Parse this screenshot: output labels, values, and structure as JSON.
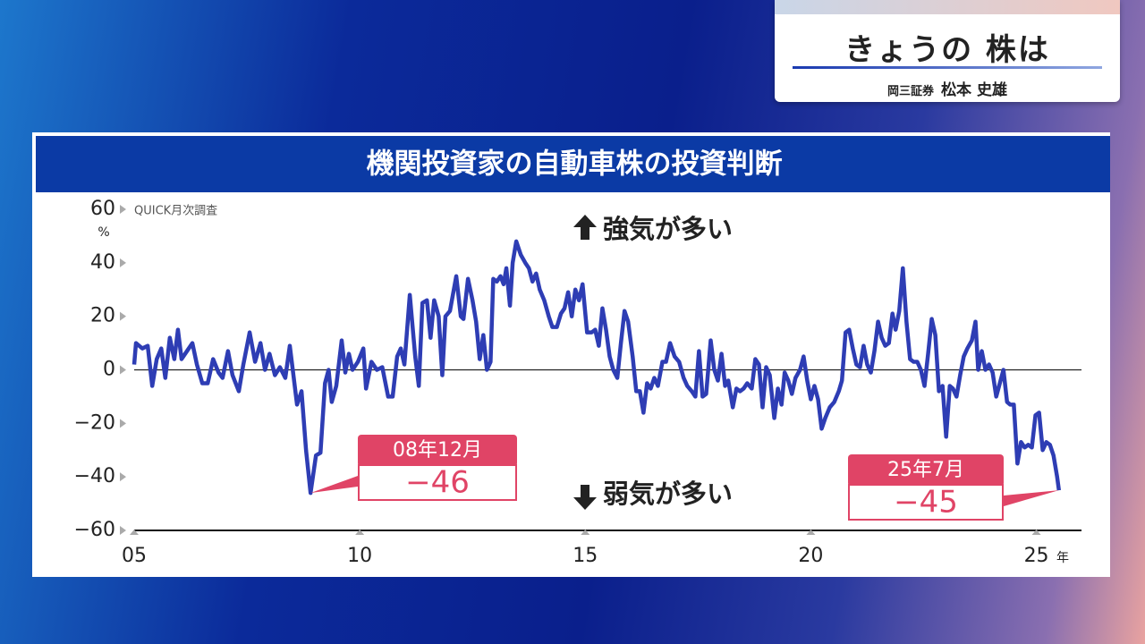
{
  "header": {
    "title": "きょうの 株は",
    "company": "岡三証券",
    "name": "松本 史雄"
  },
  "chart_data": {
    "type": "line",
    "title": "機関投資家の自動車株の投資判断",
    "note": "QUICK月次調査",
    "y_unit": "%",
    "x_unit": "年",
    "color": "#2e3db4",
    "bull_label": "強気が多い",
    "bear_label": "弱気が多い",
    "x": [
      5.0,
      5.04,
      5.18,
      5.3,
      5.4,
      5.5,
      5.6,
      5.69,
      5.79,
      5.89,
      5.97,
      6.05,
      6.17,
      6.29,
      6.39,
      6.51,
      6.63,
      6.75,
      6.87,
      6.96,
      7.08,
      7.18,
      7.32,
      7.42,
      7.56,
      7.68,
      7.8,
      7.9,
      8.0,
      8.12,
      8.23,
      8.35,
      8.45,
      8.61,
      8.71,
      8.81,
      8.91,
      9.03,
      9.13,
      9.23,
      9.31,
      9.38,
      9.48,
      9.6,
      9.68,
      9.76,
      9.84,
      9.96,
      10.08,
      10.14,
      10.26,
      10.38,
      10.5,
      10.63,
      10.73,
      10.83,
      10.91,
      10.99,
      11.11,
      11.23,
      11.31,
      11.39,
      11.49,
      11.57,
      11.65,
      11.75,
      11.83,
      11.9,
      12.0,
      12.14,
      12.24,
      12.3,
      12.4,
      12.5,
      12.58,
      12.66,
      12.74,
      12.82,
      12.9,
      12.96,
      13.04,
      13.12,
      13.19,
      13.25,
      13.33,
      13.39,
      13.47,
      13.57,
      13.67,
      13.75,
      13.83,
      13.91,
      13.99,
      14.09,
      14.19,
      14.27,
      14.37,
      14.46,
      14.54,
      14.62,
      14.7,
      14.78,
      14.86,
      14.94,
      15.04,
      15.14,
      15.22,
      15.3,
      15.38,
      15.46,
      15.54,
      15.62,
      15.71,
      15.79,
      15.87,
      15.95,
      16.05,
      16.13,
      16.21,
      16.29,
      16.37,
      16.45,
      16.53,
      16.61,
      16.71,
      16.79,
      16.88,
      16.98,
      17.08,
      17.18,
      17.26,
      17.36,
      17.44,
      17.52,
      17.6,
      17.68,
      17.78,
      17.86,
      17.94,
      18.02,
      18.1,
      18.17,
      18.27,
      18.35,
      18.43,
      18.51,
      18.59,
      18.69,
      18.77,
      18.85,
      18.93,
      19.01,
      19.09,
      19.19,
      19.27,
      19.35,
      19.42,
      19.5,
      19.58,
      19.66,
      19.76,
      19.84,
      19.92,
      20.0,
      20.08,
      20.16,
      20.24,
      20.32,
      20.42,
      20.52,
      20.62,
      20.69,
      20.77,
      20.85,
      20.93,
      21.01,
      21.09,
      21.17,
      21.25,
      21.33,
      21.41,
      21.49,
      21.57,
      21.65,
      21.73,
      21.81,
      21.88,
      21.96,
      22.04,
      22.12,
      22.2,
      22.28,
      22.36,
      22.44,
      22.52,
      22.6,
      22.68,
      22.76,
      22.84,
      22.92,
      23.0,
      23.08,
      23.15,
      23.23,
      23.31,
      23.39,
      23.47,
      23.57,
      23.65,
      23.71,
      23.79,
      23.87,
      23.95,
      24.03,
      24.11,
      24.19,
      24.27,
      24.35,
      24.42,
      24.5,
      24.58,
      24.66,
      24.74,
      24.82,
      24.9,
      24.98,
      25.06,
      25.14,
      25.22,
      25.3,
      25.38,
      25.46,
      25.5
    ],
    "values": [
      2,
      10,
      8,
      9,
      -6,
      4,
      8,
      -3,
      12,
      4,
      15,
      4,
      7,
      10,
      2,
      -5,
      -5,
      4,
      -1,
      -3,
      7,
      -2,
      -8,
      2,
      14,
      3,
      10,
      0,
      6,
      -2,
      1,
      -3,
      9,
      -13,
      -8,
      -30,
      -46,
      -32,
      -31,
      -5,
      0,
      -12,
      -6,
      11,
      -1,
      6,
      0,
      3,
      8,
      -7,
      3,
      0,
      1,
      -10,
      -10,
      5,
      8,
      2,
      28,
      5,
      -6,
      25,
      26,
      12,
      26,
      20,
      -2,
      20,
      22,
      35,
      20,
      19,
      34,
      26,
      18,
      4,
      13,
      0,
      3,
      34,
      33,
      35,
      32,
      38,
      24,
      40,
      48,
      43,
      40,
      38,
      33,
      36,
      30,
      26,
      20,
      16,
      16,
      21,
      23,
      29,
      20,
      30,
      26,
      32,
      14,
      14,
      15,
      9,
      23,
      15,
      5,
      0,
      -3,
      10,
      22,
      18,
      5,
      -8,
      -8,
      -16,
      -5,
      -7,
      -3,
      -6,
      3,
      3,
      10,
      5,
      3,
      -3,
      -6,
      -8,
      -10,
      7,
      -10,
      -9,
      11,
      0,
      -4,
      6,
      -6,
      -4,
      -14,
      -7,
      -8,
      -7,
      -5,
      -7,
      4,
      2,
      -14,
      1,
      -2,
      -18,
      -7,
      -13,
      -1,
      -4,
      -9,
      -3,
      0,
      5,
      -4,
      -11,
      -6,
      -11,
      -22,
      -18,
      -14,
      -12,
      -8,
      -4,
      14,
      15,
      8,
      2,
      1,
      9,
      2,
      -1,
      7,
      18,
      12,
      9,
      10,
      21,
      15,
      22,
      38,
      18,
      4,
      3,
      3,
      0,
      -6,
      6,
      19,
      13,
      -8,
      -6,
      -25,
      -6,
      -7,
      -10,
      -2,
      5,
      8,
      11,
      18,
      0,
      7,
      0,
      2,
      -1,
      -10,
      -5,
      0,
      -12,
      -13,
      -13,
      -35,
      -27,
      -29,
      -28,
      -29,
      -17,
      -16,
      -30,
      -27,
      -28,
      -32,
      -40,
      -45
    ],
    "xlim": [
      5,
      26
    ],
    "xticks": [
      {
        "value": 5,
        "label": "05"
      },
      10,
      15,
      20,
      25
    ],
    "ylim": [
      -60,
      60
    ],
    "yticks": [
      60,
      40,
      20,
      0,
      {
        "value": -20,
        "label": "−20"
      },
      {
        "value": -40,
        "label": "−40"
      },
      {
        "value": -60,
        "label": "−60"
      }
    ],
    "callouts": [
      {
        "date": "08年12月",
        "x": 8.91,
        "y": -46,
        "label": "−46"
      },
      {
        "date": "25年7月",
        "x": 25.5,
        "y": -45,
        "label": "−45"
      }
    ]
  }
}
